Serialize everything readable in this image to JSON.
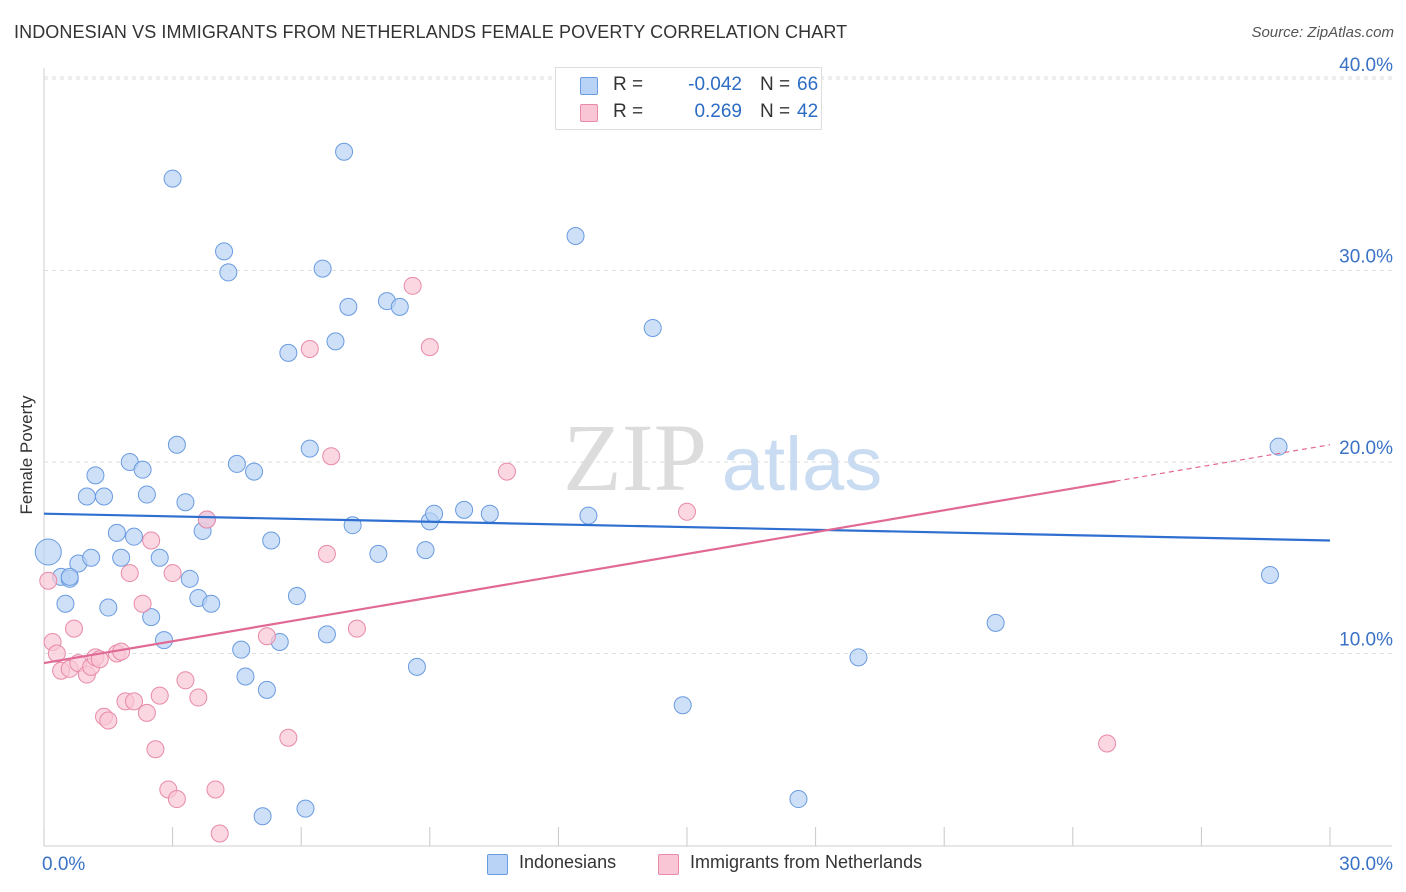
{
  "header": {
    "title": "INDONESIAN VS IMMIGRANTS FROM NETHERLANDS FEMALE POVERTY CORRELATION CHART",
    "source": "Source: ZipAtlas.com"
  },
  "watermark": {
    "zip": "ZIP",
    "atlas": "atlas"
  },
  "stats": {
    "r_label": "R =",
    "n_label": "N =",
    "rows": [
      {
        "r": "-0.042",
        "n": "66",
        "color": "#6a9be0"
      },
      {
        "r": "0.269",
        "n": "42",
        "color": "#e88aa8"
      }
    ]
  },
  "legend": [
    {
      "label": "Indonesians",
      "color": "#6a9be0"
    },
    {
      "label": "Immigrants from Netherlands",
      "color": "#e88aa8"
    }
  ],
  "chart_data": {
    "type": "scatter",
    "title": "INDONESIAN VS IMMIGRANTS FROM NETHERLANDS FEMALE POVERTY CORRELATION CHART",
    "xlabel": "",
    "ylabel": "Female Poverty",
    "xlim": [
      0,
      30
    ],
    "ylim": [
      0,
      40
    ],
    "x_tick_labels": [
      "0.0%",
      "30.0%"
    ],
    "y_ticks": [
      10,
      20,
      30,
      40
    ],
    "y_tick_labels": [
      "10.0%",
      "20.0%",
      "30.0%",
      "40.0%"
    ],
    "grid": true,
    "series": [
      {
        "name": "Indonesians",
        "color": "#6a9be0",
        "fill": "#b8d3f5",
        "trend": {
          "x": [
            0,
            30
          ],
          "y": [
            17.3,
            15.9
          ]
        },
        "points": [
          [
            0.1,
            15.3
          ],
          [
            0.4,
            14.0
          ],
          [
            0.5,
            12.6
          ],
          [
            0.6,
            13.9
          ],
          [
            0.8,
            14.7
          ],
          [
            1.0,
            18.2
          ],
          [
            1.1,
            15.0
          ],
          [
            1.2,
            19.3
          ],
          [
            1.4,
            18.2
          ],
          [
            1.5,
            12.4
          ],
          [
            1.7,
            16.3
          ],
          [
            1.8,
            15.0
          ],
          [
            2.0,
            20.0
          ],
          [
            2.1,
            16.1
          ],
          [
            2.3,
            19.6
          ],
          [
            2.4,
            18.3
          ],
          [
            2.5,
            11.9
          ],
          [
            2.7,
            15.0
          ],
          [
            2.8,
            10.7
          ],
          [
            3.0,
            34.8
          ],
          [
            3.1,
            20.9
          ],
          [
            3.3,
            17.9
          ],
          [
            3.4,
            13.9
          ],
          [
            3.6,
            12.9
          ],
          [
            3.7,
            16.4
          ],
          [
            3.8,
            17.0
          ],
          [
            3.9,
            12.6
          ],
          [
            4.2,
            31.0
          ],
          [
            4.3,
            29.9
          ],
          [
            4.5,
            19.9
          ],
          [
            4.6,
            10.2
          ],
          [
            4.7,
            8.8
          ],
          [
            4.9,
            19.5
          ],
          [
            5.1,
            1.5
          ],
          [
            5.2,
            8.1
          ],
          [
            5.3,
            15.9
          ],
          [
            5.5,
            10.6
          ],
          [
            5.7,
            25.7
          ],
          [
            5.9,
            13.0
          ],
          [
            6.1,
            1.9
          ],
          [
            6.2,
            20.7
          ],
          [
            6.5,
            30.1
          ],
          [
            6.6,
            11.0
          ],
          [
            6.8,
            26.3
          ],
          [
            7.0,
            36.2
          ],
          [
            7.1,
            28.1
          ],
          [
            7.2,
            16.7
          ],
          [
            7.8,
            15.2
          ],
          [
            8.0,
            28.4
          ],
          [
            8.3,
            28.1
          ],
          [
            8.7,
            9.3
          ],
          [
            8.9,
            15.4
          ],
          [
            9.0,
            16.9
          ],
          [
            9.1,
            17.3
          ],
          [
            9.8,
            17.5
          ],
          [
            10.4,
            17.3
          ],
          [
            12.4,
            31.8
          ],
          [
            12.7,
            17.2
          ],
          [
            14.2,
            27.0
          ],
          [
            14.9,
            7.3
          ],
          [
            17.6,
            2.4
          ],
          [
            19.0,
            9.8
          ],
          [
            22.2,
            11.6
          ],
          [
            28.6,
            14.1
          ],
          [
            28.8,
            20.8
          ],
          [
            0.6,
            14.0
          ]
        ]
      },
      {
        "name": "Immigrants from Netherlands",
        "color": "#e88aa8",
        "fill": "#f9c6d6",
        "trend": {
          "x": [
            0,
            25
          ],
          "y": [
            9.5,
            19.0
          ]
        },
        "trend_dashed": {
          "x": [
            25,
            30
          ],
          "y": [
            19.0,
            20.9
          ]
        },
        "points": [
          [
            0.1,
            13.8
          ],
          [
            0.2,
            10.6
          ],
          [
            0.3,
            10.0
          ],
          [
            0.4,
            9.1
          ],
          [
            0.6,
            9.2
          ],
          [
            0.7,
            11.3
          ],
          [
            0.8,
            9.5
          ],
          [
            1.0,
            8.9
          ],
          [
            1.1,
            9.3
          ],
          [
            1.2,
            9.8
          ],
          [
            1.3,
            9.7
          ],
          [
            1.4,
            6.7
          ],
          [
            1.5,
            6.5
          ],
          [
            1.7,
            10.0
          ],
          [
            1.8,
            10.1
          ],
          [
            1.9,
            7.5
          ],
          [
            2.0,
            14.2
          ],
          [
            2.1,
            7.5
          ],
          [
            2.3,
            12.6
          ],
          [
            2.4,
            6.9
          ],
          [
            2.5,
            15.9
          ],
          [
            2.6,
            5.0
          ],
          [
            2.7,
            7.8
          ],
          [
            2.9,
            2.9
          ],
          [
            3.0,
            14.2
          ],
          [
            3.1,
            2.4
          ],
          [
            3.3,
            8.6
          ],
          [
            3.6,
            7.7
          ],
          [
            3.8,
            17.0
          ],
          [
            4.0,
            2.9
          ],
          [
            4.1,
            0.6
          ],
          [
            5.2,
            10.9
          ],
          [
            5.7,
            5.6
          ],
          [
            6.2,
            25.9
          ],
          [
            6.6,
            15.2
          ],
          [
            6.7,
            20.3
          ],
          [
            7.3,
            11.3
          ],
          [
            8.6,
            29.2
          ],
          [
            9.0,
            26.0
          ],
          [
            10.8,
            19.5
          ],
          [
            15.0,
            17.4
          ],
          [
            24.8,
            5.3
          ]
        ]
      }
    ]
  }
}
